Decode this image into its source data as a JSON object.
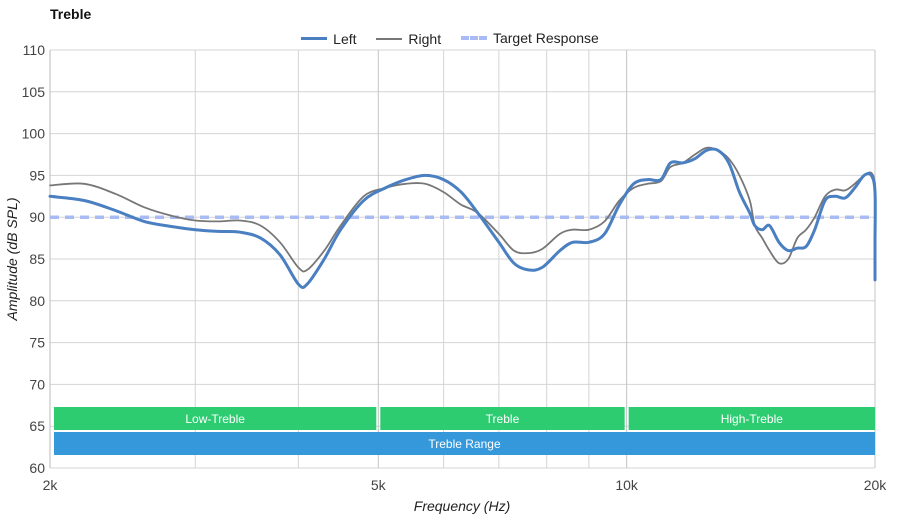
{
  "chart_data": {
    "type": "line",
    "title": "Treble",
    "xlabel": "Frequency (Hz)",
    "ylabel": "Amplitude (dB SPL)",
    "xscale": "log",
    "xlim": [
      2000,
      20000
    ],
    "ylim": [
      60,
      110
    ],
    "x_ticks": [
      {
        "value": 2000,
        "label": "2k"
      },
      {
        "value": 5000,
        "label": "5k"
      },
      {
        "value": 10000,
        "label": "10k"
      },
      {
        "value": 20000,
        "label": "20k"
      }
    ],
    "x_minor_gridlines": [
      3000,
      4000,
      6000,
      7000,
      8000,
      9000
    ],
    "y_ticks": [
      60,
      65,
      70,
      75,
      80,
      85,
      90,
      95,
      100,
      105,
      110
    ],
    "grid": true,
    "legend_position": "top-center",
    "series": [
      {
        "name": "Left",
        "color": "#4a7fc1",
        "style": "solid-thick",
        "points": [
          [
            2000,
            92.5
          ],
          [
            2200,
            92.0
          ],
          [
            2400,
            90.8
          ],
          [
            2600,
            89.5
          ],
          [
            2800,
            88.9
          ],
          [
            3000,
            88.5
          ],
          [
            3200,
            88.3
          ],
          [
            3400,
            88.2
          ],
          [
            3600,
            87.5
          ],
          [
            3800,
            85.5
          ],
          [
            4000,
            82.0
          ],
          [
            4100,
            82.0
          ],
          [
            4300,
            85.0
          ],
          [
            4500,
            88.5
          ],
          [
            4800,
            92.0
          ],
          [
            5100,
            93.5
          ],
          [
            5400,
            94.5
          ],
          [
            5700,
            95.0
          ],
          [
            6000,
            94.5
          ],
          [
            6300,
            93.0
          ],
          [
            6600,
            90.5
          ],
          [
            7000,
            87.0
          ],
          [
            7300,
            84.5
          ],
          [
            7600,
            83.7
          ],
          [
            7900,
            84.0
          ],
          [
            8300,
            86.0
          ],
          [
            8600,
            87.0
          ],
          [
            9000,
            87.0
          ],
          [
            9400,
            88.0
          ],
          [
            9800,
            91.5
          ],
          [
            10200,
            94.0
          ],
          [
            10600,
            94.5
          ],
          [
            11000,
            94.5
          ],
          [
            11300,
            96.5
          ],
          [
            11700,
            96.5
          ],
          [
            12100,
            97.0
          ],
          [
            12500,
            98.0
          ],
          [
            12900,
            98.0
          ],
          [
            13300,
            96.5
          ],
          [
            13700,
            93.0
          ],
          [
            14100,
            90.5
          ],
          [
            14300,
            89.0
          ],
          [
            14600,
            88.5
          ],
          [
            14900,
            89.0
          ],
          [
            15300,
            87.0
          ],
          [
            15700,
            86.0
          ],
          [
            16100,
            86.3
          ],
          [
            16500,
            86.5
          ],
          [
            16900,
            88.5
          ],
          [
            17400,
            92.0
          ],
          [
            17900,
            92.5
          ],
          [
            18400,
            92.3
          ],
          [
            18900,
            93.5
          ],
          [
            19400,
            95.0
          ],
          [
            19800,
            95.0
          ],
          [
            20200,
            93.0
          ],
          [
            20700,
            87.0
          ],
          [
            21200,
            83.0
          ],
          [
            21500,
            82.5
          ]
        ]
      },
      {
        "name": "Right",
        "color": "#777777",
        "style": "solid-thin",
        "points": [
          [
            2000,
            93.8
          ],
          [
            2200,
            94.0
          ],
          [
            2400,
            92.8
          ],
          [
            2600,
            91.2
          ],
          [
            2800,
            90.2
          ],
          [
            3000,
            89.6
          ],
          [
            3200,
            89.5
          ],
          [
            3400,
            89.6
          ],
          [
            3600,
            89.0
          ],
          [
            3800,
            87.0
          ],
          [
            4000,
            84.0
          ],
          [
            4100,
            83.7
          ],
          [
            4300,
            86.0
          ],
          [
            4500,
            89.0
          ],
          [
            4800,
            92.5
          ],
          [
            5100,
            93.5
          ],
          [
            5400,
            94.0
          ],
          [
            5700,
            94.0
          ],
          [
            6000,
            93.0
          ],
          [
            6300,
            91.5
          ],
          [
            6600,
            90.5
          ],
          [
            7000,
            88.0
          ],
          [
            7300,
            86.0
          ],
          [
            7600,
            85.7
          ],
          [
            7900,
            86.2
          ],
          [
            8300,
            88.0
          ],
          [
            8600,
            88.5
          ],
          [
            9000,
            88.5
          ],
          [
            9400,
            89.5
          ],
          [
            9800,
            92.0
          ],
          [
            10200,
            93.5
          ],
          [
            10600,
            94.0
          ],
          [
            11000,
            94.3
          ],
          [
            11300,
            96.0
          ],
          [
            11700,
            96.5
          ],
          [
            12100,
            97.5
          ],
          [
            12500,
            98.3
          ],
          [
            12900,
            98.0
          ],
          [
            13300,
            97.0
          ],
          [
            13700,
            95.0
          ],
          [
            14100,
            92.0
          ],
          [
            14300,
            89.0
          ],
          [
            14600,
            87.5
          ],
          [
            14900,
            86.0
          ],
          [
            15300,
            84.5
          ],
          [
            15700,
            85.0
          ],
          [
            16100,
            87.5
          ],
          [
            16500,
            88.5
          ],
          [
            16900,
            90.0
          ],
          [
            17400,
            92.5
          ],
          [
            17900,
            93.3
          ],
          [
            18400,
            93.2
          ],
          [
            18900,
            94.0
          ],
          [
            19400,
            95.0
          ],
          [
            19800,
            95.3
          ],
          [
            20200,
            94.0
          ],
          [
            20700,
            92.0
          ],
          [
            21200,
            90.5
          ],
          [
            21500,
            88.2
          ]
        ]
      },
      {
        "name": "Target Response",
        "color": "#a9bbf5",
        "style": "dashed",
        "points": [
          [
            2000,
            90
          ],
          [
            21500,
            90
          ]
        ]
      }
    ],
    "bands": [
      {
        "label": "Low-Treble",
        "from": 2000,
        "to": 5000,
        "color": "#2ecc71",
        "row": 1
      },
      {
        "label": "Treble",
        "from": 5000,
        "to": 10000,
        "color": "#2ecc71",
        "row": 1
      },
      {
        "label": "High-Treble",
        "from": 10000,
        "to": 21500,
        "color": "#2ecc71",
        "row": 1
      },
      {
        "label": "Treble Range",
        "from": 2000,
        "to": 21500,
        "color": "#3498db",
        "row": 2
      }
    ]
  }
}
